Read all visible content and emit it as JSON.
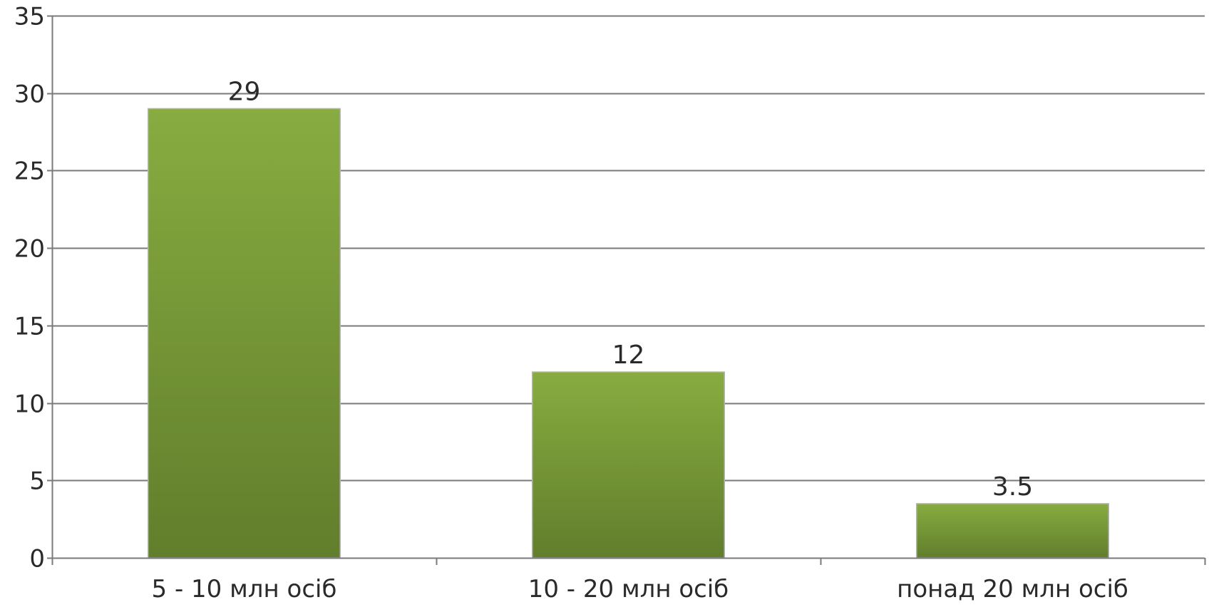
{
  "chart_data": {
    "type": "bar",
    "categories": [
      "5 - 10 млн осіб",
      "10 - 20 млн осіб",
      "понад 20 млн осіб"
    ],
    "values": [
      29,
      12,
      3.5
    ],
    "data_labels": [
      "29",
      "12",
      "3.5"
    ],
    "title": "",
    "xlabel": "",
    "ylabel": "",
    "ylim": [
      0,
      35
    ],
    "yticks": [
      0,
      5,
      10,
      15,
      20,
      25,
      30,
      35
    ],
    "ytick_labels": [
      "0",
      "5",
      "10",
      "15",
      "20",
      "25",
      "30",
      "35"
    ],
    "grid": true,
    "legend": "none",
    "colors": {
      "bar_top": "#88ac40",
      "bar_bottom": "#617e2c",
      "bar_edge": "#b4b4b4",
      "gridline": "#7a7a7a",
      "axis": "#7a7a7a",
      "text": "#2a2a2a"
    }
  }
}
